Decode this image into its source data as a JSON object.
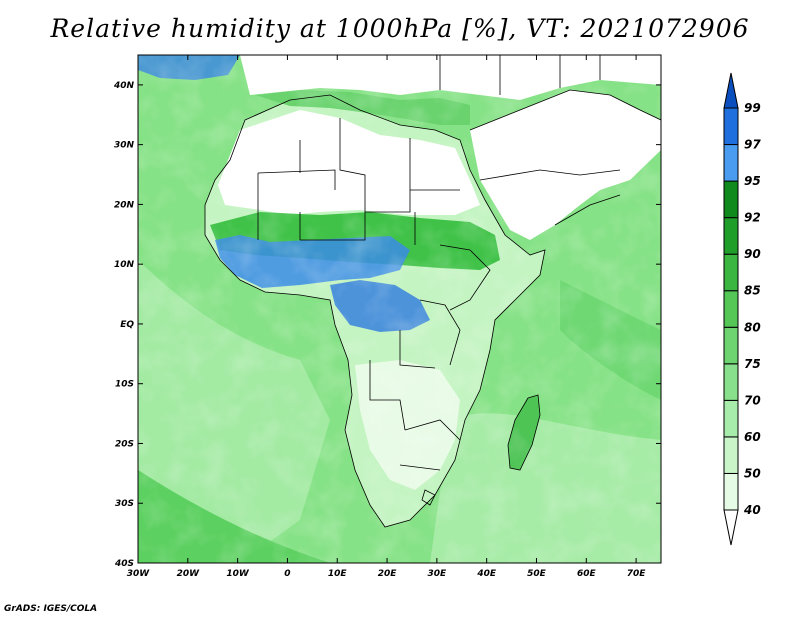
{
  "title": "Relative humidity at 1000hPa [%], VT: 2021072906",
  "credit": "GrADS: IGES/COLA",
  "map": {
    "x_ticks": [
      "30W",
      "20W",
      "10W",
      "0",
      "10E",
      "20E",
      "30E",
      "40E",
      "50E",
      "60E",
      "70E"
    ],
    "y_ticks": [
      "40N",
      "30N",
      "20N",
      "10N",
      "EQ",
      "10S",
      "20S",
      "30S",
      "40S"
    ],
    "lon_range": [
      -30,
      75
    ],
    "lat_range": [
      -40,
      45
    ]
  },
  "colorbar": {
    "levels": [
      "40",
      "50",
      "60",
      "70",
      "75",
      "80",
      "85",
      "90",
      "92",
      "95",
      "97",
      "99"
    ],
    "colors": [
      "#ffffff",
      "#e6fbe6",
      "#c9f5c8",
      "#a8ecab",
      "#89e08c",
      "#6dd46f",
      "#54c757",
      "#3bb640",
      "#1f9e2a",
      "#108a1c",
      "#4a9cf0",
      "#1f6fdf",
      "#0b4fbf"
    ]
  },
  "palette": {
    "desert": "#ffffff",
    "ocean": "#7fe27f",
    "sahel": "#3cbf44",
    "wet": "#2d74e0",
    "border": "#000000"
  }
}
